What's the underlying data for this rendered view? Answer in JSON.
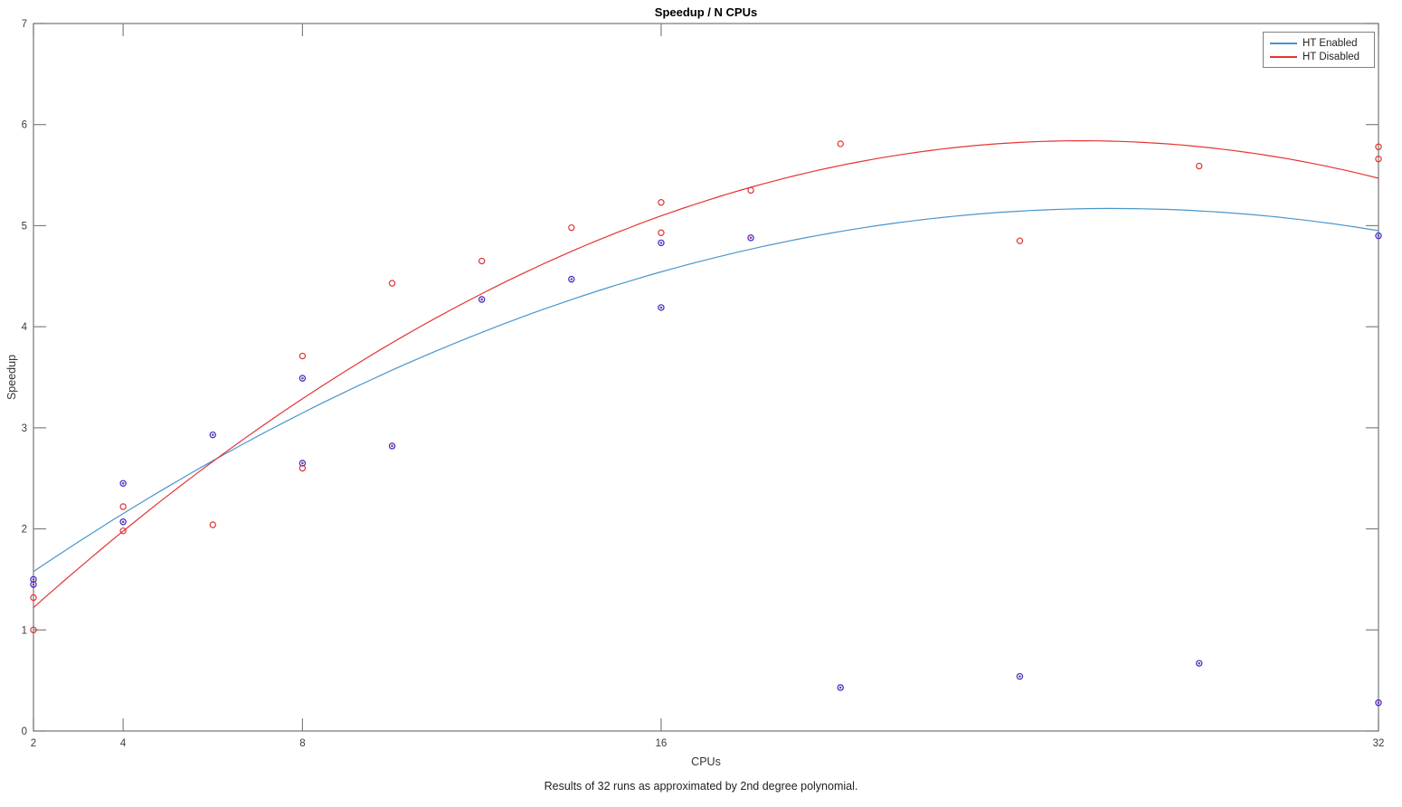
{
  "figure": {
    "title": "Speedup / N CPUs",
    "caption": "Results of 32 runs as approximated by 2nd degree polynomial."
  },
  "chart_data": {
    "type": "scatter",
    "title": "Speedup / N CPUs",
    "xlabel": "CPUs",
    "ylabel": "Speedup",
    "caption": "Results of 32 runs as approximated by 2nd degree polynomial.",
    "x_scale": "linear",
    "xlim": [
      2,
      32
    ],
    "ylim": [
      0,
      7
    ],
    "xticks": [
      2,
      4,
      8,
      16,
      32
    ],
    "yticks": [
      0,
      1,
      2,
      3,
      4,
      5,
      6,
      7
    ],
    "grid": false,
    "legend": {
      "position": "top-right",
      "entries": [
        {
          "label": "HT Enabled",
          "color": "#4a96cc"
        },
        {
          "label": "HT Disabled",
          "color": "#e63333"
        }
      ]
    },
    "colors": {
      "axis": "#808080",
      "tick_text": "#3c3c3c",
      "background": "#ffffff"
    },
    "series": [
      {
        "name": "HT Enabled",
        "line_color": "#4a96cc",
        "marker_color": "#2a2ad0",
        "marker_center_color": "#b03366",
        "marker_style": "open-circle-with-dot",
        "points": [
          [
            2,
            1.5
          ],
          [
            2,
            1.45
          ],
          [
            4,
            2.45
          ],
          [
            4,
            2.07
          ],
          [
            6,
            2.93
          ],
          [
            8,
            3.49
          ],
          [
            8,
            2.65
          ],
          [
            10,
            2.82
          ],
          [
            12,
            4.27
          ],
          [
            14,
            4.47
          ],
          [
            16,
            4.83
          ],
          [
            16,
            4.19
          ],
          [
            18,
            4.88
          ],
          [
            20,
            0.43
          ],
          [
            24,
            0.54
          ],
          [
            28,
            0.67
          ],
          [
            32,
            4.9
          ],
          [
            32,
            0.28
          ]
        ],
        "fit": {
          "type": "poly2",
          "description": "v = vmax - a*(c - c0)^2",
          "vmax": 5.17,
          "c0": 26.05,
          "a": 0.00621
        }
      },
      {
        "name": "HT Disabled",
        "line_color": "#e63333",
        "marker_color": "#e03333",
        "marker_style": "open-circle",
        "points": [
          [
            2,
            1.32
          ],
          [
            2,
            1.0
          ],
          [
            4,
            2.22
          ],
          [
            4,
            1.98
          ],
          [
            6,
            2.04
          ],
          [
            8,
            3.71
          ],
          [
            8,
            2.6
          ],
          [
            10,
            4.43
          ],
          [
            12,
            4.65
          ],
          [
            14,
            4.98
          ],
          [
            16,
            5.23
          ],
          [
            16,
            4.93
          ],
          [
            18,
            5.35
          ],
          [
            20,
            5.81
          ],
          [
            24,
            4.85
          ],
          [
            28,
            5.59
          ],
          [
            32,
            5.78
          ],
          [
            32,
            5.66
          ]
        ],
        "fit": {
          "type": "poly2",
          "description": "v = vmax - a*(c - c0)^2",
          "vmax": 5.84,
          "c0": 25.38,
          "a": 0.00845
        }
      }
    ]
  }
}
